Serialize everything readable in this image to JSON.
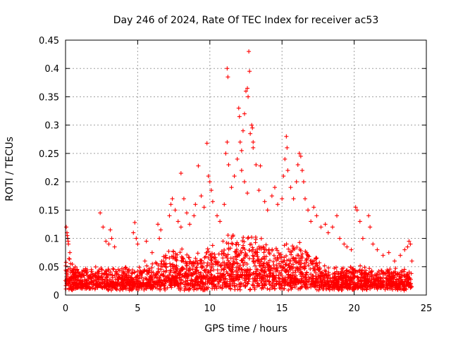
{
  "chart_data": {
    "type": "scatter",
    "title": "Day 246 of 2024, Rate Of TEC Index for receiver ac53",
    "xlabel": "GPS time / hours",
    "ylabel": "ROTI / TECUs",
    "xlim": [
      0,
      25
    ],
    "ylim": [
      0,
      0.45
    ],
    "xticks": [
      "0",
      "5",
      "10",
      "15",
      "20",
      "25"
    ],
    "yticks": [
      "0",
      "0.05",
      "0.1",
      "0.15",
      "0.2",
      "0.25",
      "0.3",
      "0.35",
      "0.4",
      "0.45"
    ],
    "grid": true,
    "marker": "+",
    "color": "#ff0000",
    "series": [
      {
        "name": "ROTI",
        "points": [
          [
            0.05,
            0.12
          ],
          [
            0.1,
            0.11
          ],
          [
            0.15,
            0.1
          ],
          [
            0.2,
            0.09
          ],
          [
            0.3,
            0.075
          ],
          [
            0.12,
            0.105
          ],
          [
            0.18,
            0.095
          ],
          [
            2.4,
            0.145
          ],
          [
            2.6,
            0.12
          ],
          [
            2.8,
            0.095
          ],
          [
            3.0,
            0.09
          ],
          [
            3.2,
            0.1
          ],
          [
            3.1,
            0.115
          ],
          [
            3.4,
            0.085
          ],
          [
            4.8,
            0.128
          ],
          [
            4.7,
            0.11
          ],
          [
            4.9,
            0.1
          ],
          [
            5.0,
            0.09
          ],
          [
            5.5,
            0.06
          ],
          [
            5.6,
            0.095
          ],
          [
            6.0,
            0.075
          ],
          [
            6.5,
            0.1
          ],
          [
            6.6,
            0.115
          ],
          [
            6.4,
            0.125
          ],
          [
            7.2,
            0.14
          ],
          [
            7.3,
            0.16
          ],
          [
            7.4,
            0.17
          ],
          [
            7.6,
            0.15
          ],
          [
            7.8,
            0.13
          ],
          [
            8.0,
            0.12
          ],
          [
            8.0,
            0.215
          ],
          [
            8.2,
            0.17
          ],
          [
            8.4,
            0.145
          ],
          [
            8.6,
            0.125
          ],
          [
            8.9,
            0.14
          ],
          [
            9.0,
            0.16
          ],
          [
            9.2,
            0.228
          ],
          [
            9.4,
            0.175
          ],
          [
            9.6,
            0.155
          ],
          [
            9.8,
            0.268
          ],
          [
            9.9,
            0.21
          ],
          [
            10.0,
            0.2
          ],
          [
            10.1,
            0.185
          ],
          [
            10.2,
            0.165
          ],
          [
            10.5,
            0.14
          ],
          [
            10.7,
            0.13
          ],
          [
            11.0,
            0.16
          ],
          [
            11.1,
            0.25
          ],
          [
            11.2,
            0.27
          ],
          [
            11.2,
            0.4
          ],
          [
            11.25,
            0.385
          ],
          [
            11.3,
            0.23
          ],
          [
            11.5,
            0.19
          ],
          [
            11.7,
            0.21
          ],
          [
            11.9,
            0.24
          ],
          [
            12.0,
            0.33
          ],
          [
            12.05,
            0.315
          ],
          [
            12.1,
            0.27
          ],
          [
            12.2,
            0.255
          ],
          [
            12.3,
            0.29
          ],
          [
            12.4,
            0.32
          ],
          [
            12.5,
            0.36
          ],
          [
            12.6,
            0.365
          ],
          [
            12.65,
            0.35
          ],
          [
            12.7,
            0.43
          ],
          [
            12.75,
            0.395
          ],
          [
            12.8,
            0.285
          ],
          [
            12.9,
            0.3
          ],
          [
            12.95,
            0.295
          ],
          [
            13.0,
            0.27
          ],
          [
            12.2,
            0.22
          ],
          [
            12.4,
            0.2
          ],
          [
            12.6,
            0.18
          ],
          [
            13.0,
            0.26
          ],
          [
            13.2,
            0.23
          ],
          [
            13.5,
            0.228
          ],
          [
            13.4,
            0.185
          ],
          [
            13.8,
            0.165
          ],
          [
            14.0,
            0.15
          ],
          [
            14.3,
            0.175
          ],
          [
            14.5,
            0.19
          ],
          [
            14.7,
            0.16
          ],
          [
            15.0,
            0.17
          ],
          [
            15.1,
            0.21
          ],
          [
            15.2,
            0.24
          ],
          [
            15.3,
            0.28
          ],
          [
            15.35,
            0.26
          ],
          [
            15.4,
            0.22
          ],
          [
            15.6,
            0.19
          ],
          [
            15.8,
            0.17
          ],
          [
            16.0,
            0.2
          ],
          [
            16.1,
            0.23
          ],
          [
            16.2,
            0.25
          ],
          [
            16.3,
            0.245
          ],
          [
            16.4,
            0.22
          ],
          [
            16.5,
            0.2
          ],
          [
            16.6,
            0.17
          ],
          [
            16.8,
            0.15
          ],
          [
            17.0,
            0.13
          ],
          [
            17.2,
            0.155
          ],
          [
            17.4,
            0.14
          ],
          [
            17.7,
            0.12
          ],
          [
            18.0,
            0.125
          ],
          [
            18.2,
            0.11
          ],
          [
            18.5,
            0.12
          ],
          [
            18.8,
            0.14
          ],
          [
            19.0,
            0.1
          ],
          [
            19.3,
            0.09
          ],
          [
            19.5,
            0.085
          ],
          [
            19.8,
            0.08
          ],
          [
            20.1,
            0.155
          ],
          [
            20.2,
            0.15
          ],
          [
            20.4,
            0.13
          ],
          [
            20.6,
            0.1
          ],
          [
            21.0,
            0.14
          ],
          [
            21.1,
            0.12
          ],
          [
            21.3,
            0.09
          ],
          [
            21.6,
            0.08
          ],
          [
            22.0,
            0.07
          ],
          [
            22.4,
            0.075
          ],
          [
            22.8,
            0.06
          ],
          [
            23.2,
            0.07
          ],
          [
            23.5,
            0.08
          ],
          [
            23.7,
            0.085
          ],
          [
            23.8,
            0.095
          ],
          [
            23.9,
            0.09
          ],
          [
            24.0,
            0.06
          ]
        ]
      }
    ]
  }
}
